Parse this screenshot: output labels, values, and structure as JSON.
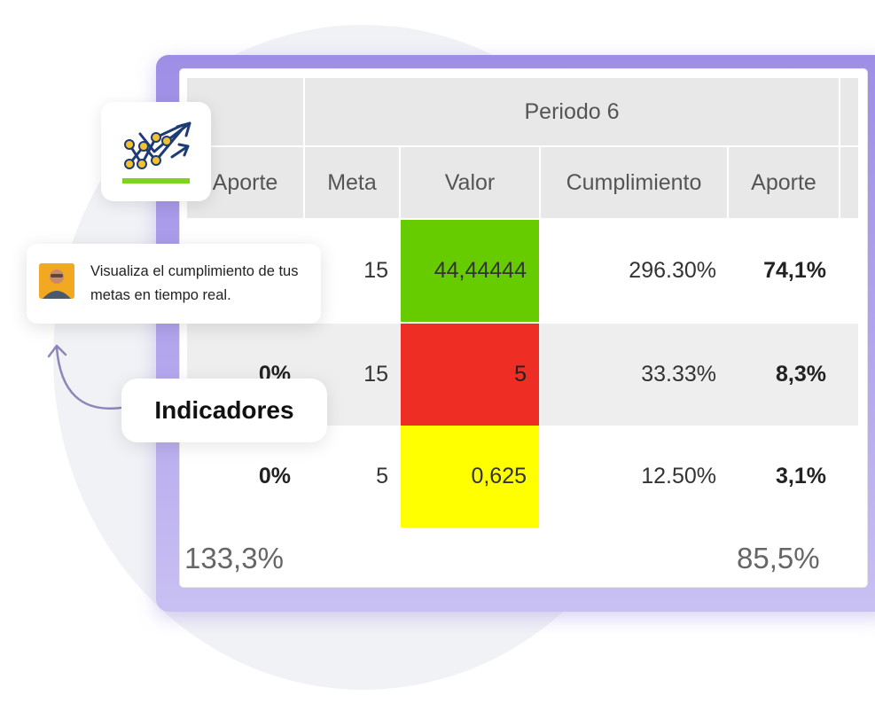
{
  "table": {
    "period_header": "Periodo 6",
    "columns": [
      "Aporte",
      "Meta",
      "Valor",
      "Cumplimiento",
      "Aporte"
    ],
    "rows": [
      {
        "aporte_prev": "",
        "meta": "15",
        "valor": "44,44444",
        "cumplimiento": "296.30%",
        "aporte": "74,1%",
        "status_color": "#66cc00"
      },
      {
        "aporte_prev": "0%",
        "meta": "15",
        "valor": "5",
        "cumplimiento": "33.33%",
        "aporte": "8,3%",
        "status_color": "#ee2e24"
      },
      {
        "aporte_prev": "0%",
        "meta": "5",
        "valor": "0,625",
        "cumplimiento": "12.50%",
        "aporte": "3,1%",
        "status_color": "#ffff00"
      }
    ],
    "totals": {
      "left": "133,3%",
      "right": "85,5%"
    }
  },
  "tooltip": {
    "text": "Visualiza el cumplimiento de tus metas en tiempo real."
  },
  "badge": {
    "label": "Indicadores"
  },
  "icons": {
    "card_icon": "trend-chart-icon",
    "avatar": "user-avatar",
    "arrow": "curved-arrow-icon"
  },
  "colors": {
    "frame_accent": "#a393e8",
    "icon_blue": "#1f3b73",
    "icon_yellow": "#f2c230",
    "icon_green": "#7ed321"
  }
}
